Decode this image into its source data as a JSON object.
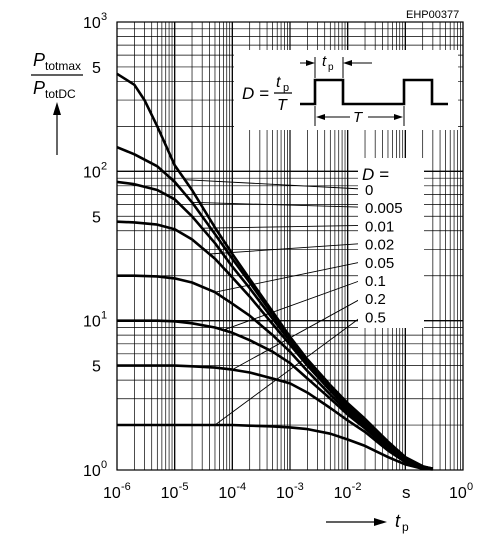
{
  "figure_id": "EHP00377",
  "y_axis": {
    "label_num_main": "P",
    "label_num_sub": "totmax",
    "label_den_main": "P",
    "label_den_sub": "totDC",
    "ticks": [
      {
        "base": "10",
        "exp": "0"
      },
      {
        "base": "5",
        "exp": ""
      },
      {
        "base": "10",
        "exp": "1"
      },
      {
        "base": "5",
        "exp": ""
      },
      {
        "base": "10",
        "exp": "2"
      },
      {
        "base": "5",
        "exp": ""
      },
      {
        "base": "10",
        "exp": "3"
      }
    ]
  },
  "x_axis": {
    "label_main": "t",
    "label_sub": "p",
    "unit": "s",
    "ticks": [
      {
        "base": "10",
        "exp": "-6"
      },
      {
        "base": "10",
        "exp": "-5"
      },
      {
        "base": "10",
        "exp": "-4"
      },
      {
        "base": "10",
        "exp": "-3"
      },
      {
        "base": "10",
        "exp": "-2"
      },
      {
        "base": "10",
        "exp": "0"
      }
    ]
  },
  "inset": {
    "formula_lhs": "D =",
    "formula_num_main": "t",
    "formula_num_sub": "p",
    "formula_den": "T",
    "pulse_label_main": "t",
    "pulse_label_sub": "p",
    "period_label": "T"
  },
  "legend_title": "D =",
  "chart_data": {
    "type": "line",
    "title": "",
    "xlabel": "tp (s)",
    "ylabel": "Ptotmax / PtotDC",
    "x_scale": "log",
    "y_scale": "log",
    "xlim": [
      1e-06,
      1
    ],
    "ylim": [
      1,
      1000
    ],
    "grid": true,
    "legend_placement": "right, with leader lines to curves",
    "series": [
      {
        "name": "0",
        "x": [
          1e-06,
          2e-06,
          3e-06,
          5e-06,
          1e-05,
          2e-05,
          5e-05,
          0.0001,
          0.0002,
          0.0005,
          0.001,
          0.002,
          0.005,
          0.01,
          0.02,
          0.05,
          0.1,
          0.2,
          0.3
        ],
        "y": [
          450,
          380,
          300,
          200,
          110,
          75,
          42,
          28,
          19,
          11.5,
          7.8,
          5.5,
          3.7,
          2.8,
          2.2,
          1.55,
          1.22,
          1.06,
          1.02
        ]
      },
      {
        "name": "0.005",
        "x": [
          1e-06,
          2e-06,
          5e-06,
          1e-05,
          2e-05,
          5e-05,
          0.0001,
          0.0002,
          0.0005,
          0.001,
          0.002,
          0.005,
          0.01,
          0.02,
          0.05,
          0.1,
          0.2,
          0.3
        ],
        "y": [
          145,
          130,
          108,
          85,
          62,
          38,
          26,
          18,
          11,
          7.6,
          5.4,
          3.6,
          2.7,
          2.1,
          1.5,
          1.2,
          1.05,
          1.02
        ]
      },
      {
        "name": "0.01",
        "x": [
          1e-06,
          2e-06,
          5e-06,
          1e-05,
          2e-05,
          5e-05,
          0.0001,
          0.0002,
          0.0005,
          0.001,
          0.002,
          0.005,
          0.01,
          0.02,
          0.05,
          0.1,
          0.2,
          0.3
        ],
        "y": [
          85,
          82,
          75,
          65,
          50,
          33,
          23,
          16.5,
          10.3,
          7.3,
          5.2,
          3.5,
          2.6,
          2.05,
          1.48,
          1.19,
          1.05,
          1.02
        ]
      },
      {
        "name": "0.02",
        "x": [
          1e-06,
          2e-06,
          5e-06,
          1e-05,
          2e-05,
          5e-05,
          0.0001,
          0.0002,
          0.0005,
          0.001,
          0.002,
          0.005,
          0.01,
          0.02,
          0.05,
          0.1,
          0.2,
          0.3
        ],
        "y": [
          46,
          45.5,
          44,
          41,
          35,
          26,
          19.5,
          14.5,
          9.5,
          6.9,
          5.0,
          3.4,
          2.55,
          2.0,
          1.45,
          1.18,
          1.05,
          1.02
        ]
      },
      {
        "name": "0.05",
        "x": [
          1e-06,
          2e-06,
          5e-06,
          1e-05,
          2e-05,
          5e-05,
          0.0001,
          0.0002,
          0.0005,
          0.001,
          0.002,
          0.005,
          0.01,
          0.02,
          0.05,
          0.1,
          0.2,
          0.3
        ],
        "y": [
          20,
          20,
          19.8,
          19.2,
          18,
          15.5,
          13,
          10.8,
          8.0,
          6.2,
          4.6,
          3.2,
          2.45,
          1.95,
          1.42,
          1.16,
          1.04,
          1.02
        ]
      },
      {
        "name": "0.1",
        "x": [
          1e-06,
          2e-06,
          5e-06,
          1e-05,
          2e-05,
          5e-05,
          0.0001,
          0.0002,
          0.0005,
          0.001,
          0.002,
          0.005,
          0.01,
          0.02,
          0.05,
          0.1,
          0.2,
          0.3
        ],
        "y": [
          10,
          10,
          10,
          9.9,
          9.6,
          9.0,
          8.3,
          7.4,
          6.2,
          5.2,
          4.1,
          3.0,
          2.35,
          1.9,
          1.4,
          1.15,
          1.04,
          1.02
        ]
      },
      {
        "name": "0.2",
        "x": [
          1e-06,
          2e-06,
          5e-06,
          1e-05,
          2e-05,
          5e-05,
          0.0001,
          0.0002,
          0.0005,
          0.001,
          0.002,
          0.005,
          0.01,
          0.02,
          0.05,
          0.1,
          0.2,
          0.3
        ],
        "y": [
          5,
          5,
          5,
          5,
          4.95,
          4.85,
          4.7,
          4.5,
          4.1,
          3.8,
          3.3,
          2.6,
          2.15,
          1.8,
          1.35,
          1.13,
          1.03,
          1.02
        ]
      },
      {
        "name": "0.5",
        "x": [
          1e-06,
          2e-06,
          5e-06,
          1e-05,
          2e-05,
          5e-05,
          0.0001,
          0.0002,
          0.0005,
          0.001,
          0.002,
          0.005,
          0.01,
          0.02,
          0.05,
          0.1,
          0.2,
          0.3
        ],
        "y": [
          2,
          2,
          2,
          2,
          2,
          2,
          2,
          1.98,
          1.96,
          1.93,
          1.88,
          1.75,
          1.6,
          1.45,
          1.22,
          1.09,
          1.02,
          1.01
        ]
      }
    ]
  }
}
